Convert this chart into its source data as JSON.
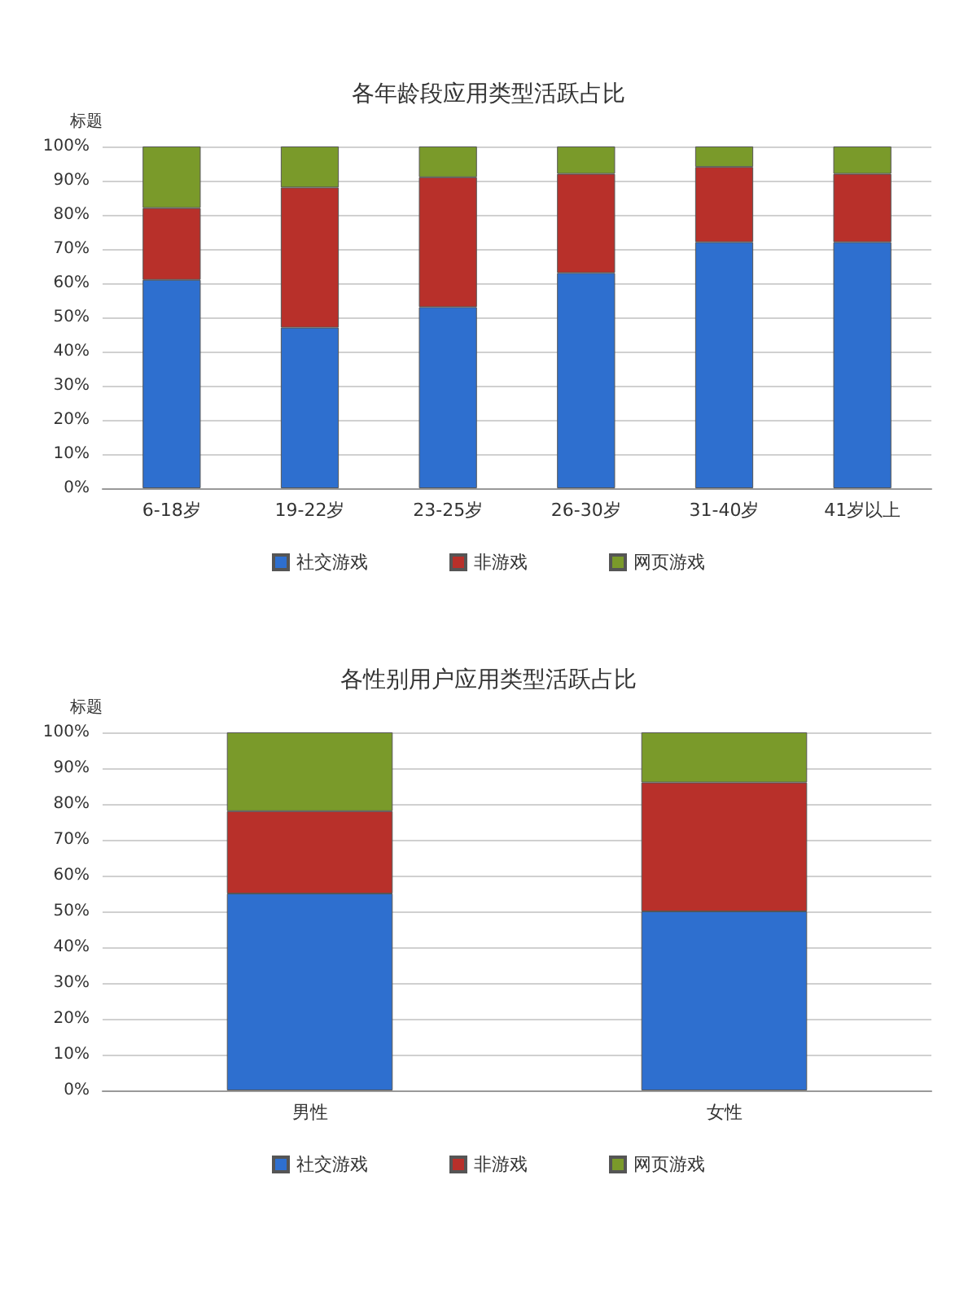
{
  "chart_data": [
    {
      "type": "bar",
      "title": "各年龄段应用类型活跃占比",
      "ylabel": "标题",
      "stacked": true,
      "categories": [
        "6-18岁",
        "19-22岁",
        "23-25岁",
        "26-30岁",
        "31-40岁",
        "41岁以上"
      ],
      "series": [
        {
          "name": "社交游戏",
          "color": "#2e6fcf",
          "values": [
            61,
            47,
            53,
            63,
            72,
            72
          ]
        },
        {
          "name": "非游戏",
          "color": "#b8302a",
          "values": [
            21,
            41,
            38,
            29,
            22,
            20
          ]
        },
        {
          "name": "网页游戏",
          "color": "#7a9a2a",
          "values": [
            18,
            12,
            9,
            8,
            6,
            8
          ]
        }
      ],
      "ylim": [
        0,
        100
      ],
      "yticks": [
        {
          "value": 0,
          "label": "0%"
        },
        {
          "value": 10,
          "label": "10%"
        },
        {
          "value": 20,
          "label": "20%"
        },
        {
          "value": 30,
          "label": "30%"
        },
        {
          "value": 40,
          "label": "40%"
        },
        {
          "value": 50,
          "label": "50%"
        },
        {
          "value": 60,
          "label": "60%"
        },
        {
          "value": 70,
          "label": "70%"
        },
        {
          "value": 80,
          "label": "80%"
        },
        {
          "value": 90,
          "label": "90%"
        },
        {
          "value": 100,
          "label": "100%"
        }
      ],
      "grid": "y",
      "legend": "bottom"
    },
    {
      "type": "bar",
      "title": "各性别用户应用类型活跃占比",
      "ylabel": "标题",
      "stacked": true,
      "categories": [
        "男性",
        "女性"
      ],
      "series": [
        {
          "name": "社交游戏",
          "color": "#2e6fcf",
          "values": [
            55,
            50
          ]
        },
        {
          "name": "非游戏",
          "color": "#b8302a",
          "values": [
            23,
            36
          ]
        },
        {
          "name": "网页游戏",
          "color": "#7a9a2a",
          "values": [
            22,
            14
          ]
        }
      ],
      "ylim": [
        0,
        100
      ],
      "yticks": [
        {
          "value": 0,
          "label": "0%"
        },
        {
          "value": 10,
          "label": "10%"
        },
        {
          "value": 20,
          "label": "20%"
        },
        {
          "value": 30,
          "label": "30%"
        },
        {
          "value": 40,
          "label": "40%"
        },
        {
          "value": 50,
          "label": "50%"
        },
        {
          "value": 60,
          "label": "60%"
        },
        {
          "value": 70,
          "label": "70%"
        },
        {
          "value": 80,
          "label": "80%"
        },
        {
          "value": 90,
          "label": "90%"
        },
        {
          "value": 100,
          "label": "100%"
        }
      ],
      "grid": "y",
      "legend": "bottom"
    }
  ]
}
